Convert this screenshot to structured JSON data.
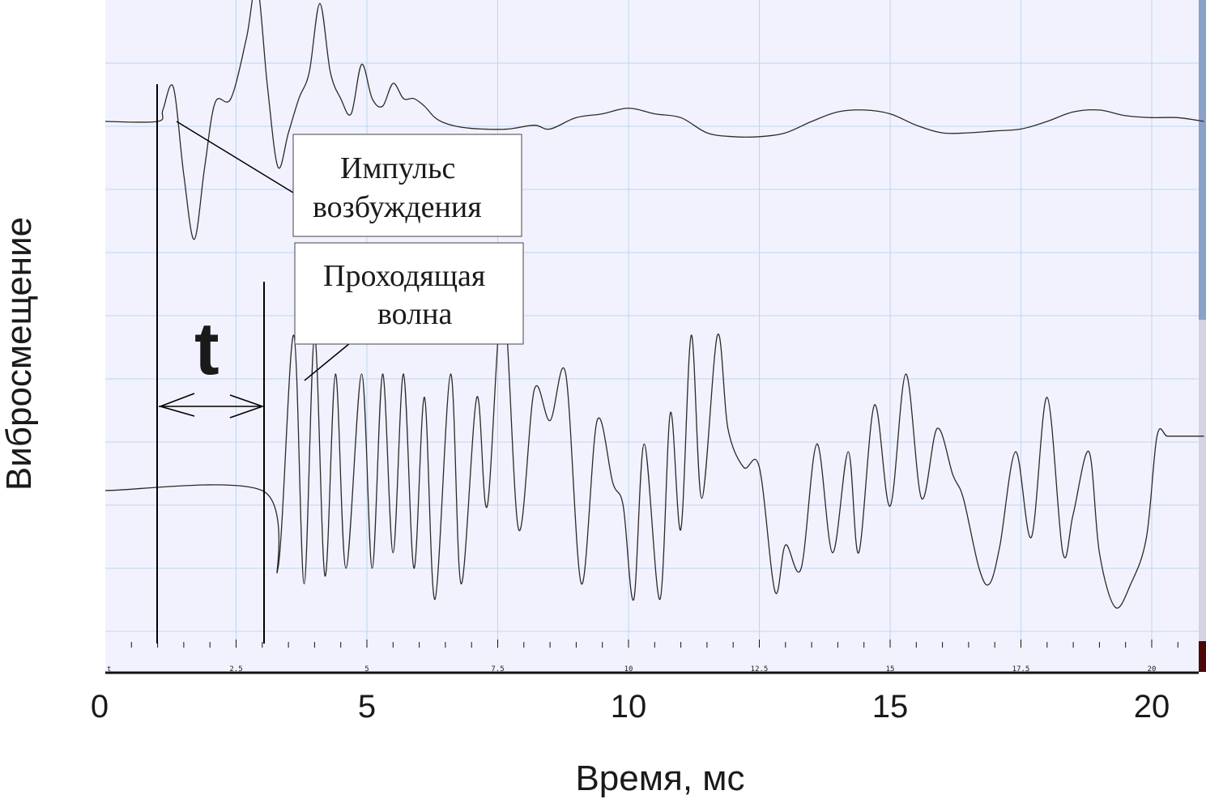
{
  "chart_data": {
    "type": "line",
    "title": "",
    "xlabel": "Время, мс",
    "ylabel": "Вибросмещение",
    "xlim": [
      0,
      21
    ],
    "x_ticks": [
      0,
      5,
      10,
      15,
      20
    ],
    "inner_ruler_labels": [
      "t",
      "2.5",
      "5",
      "7.5",
      "10",
      "12.5",
      "15",
      "17.5",
      "20"
    ],
    "grid": true,
    "series": [
      {
        "x": [
          0,
          1.0,
          1.1,
          1.3,
          1.5,
          1.7,
          1.9,
          2.1,
          2.4,
          2.7,
          2.9,
          3.1,
          3.3,
          3.5,
          3.7,
          3.9,
          4.1,
          4.3,
          4.5,
          4.7,
          4.9,
          5.1,
          5.3,
          5.5,
          5.7,
          5.9,
          6.1,
          6.3,
          6.5,
          6.8,
          7.2,
          7.7,
          8.2,
          8.5,
          9.0,
          9.5,
          10.0,
          10.5,
          11.0,
          11.5,
          12.0,
          12.5,
          13.0,
          13.5,
          14.0,
          14.5,
          15.0,
          15.5,
          16.0,
          16.5,
          17.0,
          17.5,
          18.0,
          18.5,
          19.0,
          19.5,
          20.0,
          20.5,
          21.0
        ],
        "y": [
          0,
          0,
          0.3,
          0.9,
          -1.4,
          -3.1,
          -1.2,
          0.5,
          0.6,
          2.2,
          3.6,
          0.9,
          -1.2,
          -0.3,
          0.6,
          1.3,
          3.1,
          1.3,
          0.6,
          0.2,
          1.5,
          0.6,
          0.4,
          1.0,
          0.6,
          0.6,
          0.4,
          0.1,
          -0.05,
          -0.15,
          -0.2,
          -0.2,
          -0.1,
          -0.2,
          0.1,
          0.2,
          0.35,
          0.2,
          0.1,
          -0.3,
          -0.4,
          -0.4,
          -0.3,
          0.0,
          0.25,
          0.3,
          0.2,
          -0.1,
          -0.3,
          -0.3,
          -0.25,
          -0.2,
          0.0,
          0.25,
          0.3,
          0.15,
          0.1,
          0.1,
          0.0
        ]
      },
      {
        "x": [
          0,
          3.0,
          3.3,
          3.6,
          3.8,
          4.0,
          4.2,
          4.4,
          4.6,
          4.9,
          5.1,
          5.3,
          5.5,
          5.7,
          5.9,
          6.1,
          6.3,
          6.6,
          6.8,
          7.1,
          7.3,
          7.6,
          7.9,
          8.2,
          8.5,
          8.8,
          9.1,
          9.4,
          9.7,
          9.9,
          10.1,
          10.3,
          10.6,
          10.8,
          11.0,
          11.2,
          11.4,
          11.7,
          11.9,
          12.2,
          12.5,
          12.8,
          13.0,
          13.3,
          13.6,
          13.9,
          14.2,
          14.4,
          14.7,
          15.0,
          15.3,
          15.6,
          15.9,
          16.2,
          16.4,
          16.7,
          16.9,
          17.1,
          17.4,
          17.7,
          18.0,
          18.3,
          18.5,
          18.8,
          19.0,
          19.3,
          19.6,
          19.9,
          20.1,
          20.3,
          20.6,
          20.8,
          21.0
        ],
        "y": [
          0,
          0,
          -1.0,
          2.0,
          -1.2,
          2.0,
          -1.1,
          1.5,
          -1.0,
          1.5,
          -1.0,
          1.5,
          -0.8,
          1.5,
          -1.0,
          1.2,
          -1.4,
          1.5,
          -1.2,
          1.2,
          -0.2,
          2.5,
          -0.5,
          1.3,
          0.9,
          1.5,
          -1.2,
          0.9,
          0.1,
          -0.2,
          -1.4,
          0.6,
          -1.4,
          1.0,
          -0.5,
          2.0,
          -0.1,
          2.0,
          0.8,
          0.3,
          0.3,
          -1.3,
          -0.7,
          -1.0,
          0.6,
          -0.8,
          0.5,
          -0.8,
          1.1,
          -0.2,
          1.5,
          -0.1,
          0.8,
          0.2,
          -0.1,
          -1.0,
          -1.2,
          -0.7,
          0.5,
          -0.6,
          1.2,
          -0.8,
          -0.3,
          0.5,
          -0.8,
          -1.5,
          -1.2,
          -0.6,
          0.7,
          0.7,
          0.7,
          0.7,
          0.7
        ]
      }
    ]
  },
  "annotations": {
    "excitation_line1": "Импульс",
    "excitation_line2": "возбуждения",
    "wave_line1": "Проходящая",
    "wave_line2": "волна",
    "t_label": "t"
  }
}
